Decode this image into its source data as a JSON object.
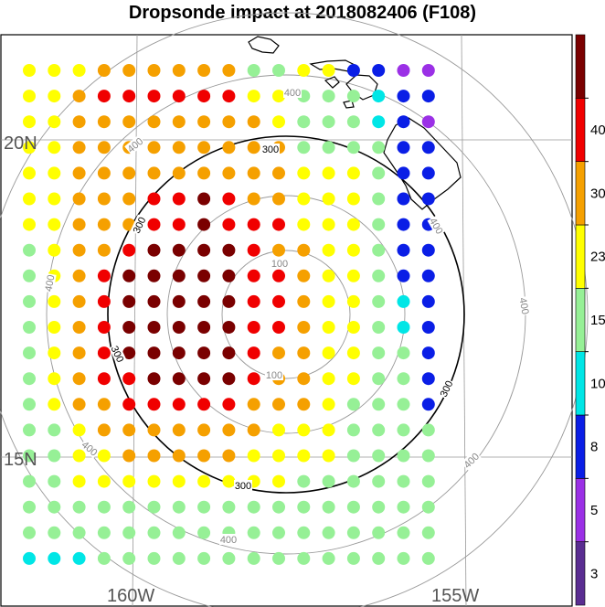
{
  "title": "Dropsonde impact at 2018082406 (F108)",
  "axes": {
    "lat_labels": [
      {
        "text": "20N"
      },
      {
        "text": "15N"
      }
    ],
    "lon_labels": [
      {
        "text": "160W"
      },
      {
        "text": "155W"
      }
    ]
  },
  "colorbar": {
    "levels": [
      "3",
      "5",
      "8",
      "10",
      "15",
      "23",
      "30",
      "40"
    ],
    "colors": [
      "#5a2d91",
      "#9b30e6",
      "#0a1ee6",
      "#00e6e6",
      "#96f096",
      "#ffff00",
      "#f5a000",
      "#f00000",
      "#7a0000"
    ]
  },
  "range_rings": {
    "labels": [
      {
        "text": "100",
        "color": "#888888"
      },
      {
        "text": "100",
        "color": "#888888"
      },
      {
        "text": "300",
        "color": "#000000"
      },
      {
        "text": "300",
        "color": "#000000"
      },
      {
        "text": "300",
        "color": "#000000"
      },
      {
        "text": "300",
        "color": "#000000"
      },
      {
        "text": "300",
        "color": "#000000"
      },
      {
        "text": "400",
        "color": "#888888"
      },
      {
        "text": "400",
        "color": "#888888"
      },
      {
        "text": "400",
        "color": "#888888"
      },
      {
        "text": "400",
        "color": "#888888"
      },
      {
        "text": "400",
        "color": "#888888"
      },
      {
        "text": "400",
        "color": "#888888"
      },
      {
        "text": "400",
        "color": "#888888"
      },
      {
        "text": "400",
        "color": "#888888"
      }
    ]
  },
  "chart_data": {
    "type": "heatmap",
    "title": "Dropsonde impact at 2018082406 (F108)",
    "legend_placement": "right",
    "grid": true,
    "levels": [
      3,
      5,
      8,
      10,
      15,
      23,
      30,
      40
    ],
    "rows": [
      "55566666644552211",
      "55677777755444322",
      "55666666665444321",
      "55666666666444422",
      "55666666666555422",
      "55666778766555422",
      "55666778777555422",
      "45667888876655422",
      "45678888877655422",
      "45678888877655432",
      "45678888877655432",
      "45678888876655442",
      "45677888876655442",
      "45667777766654442",
      "44566666665554444",
      "44556666655554444",
      "44555555555444444",
      "44444444444444444",
      "44444444444444444",
      "33344444444444444"
    ]
  }
}
